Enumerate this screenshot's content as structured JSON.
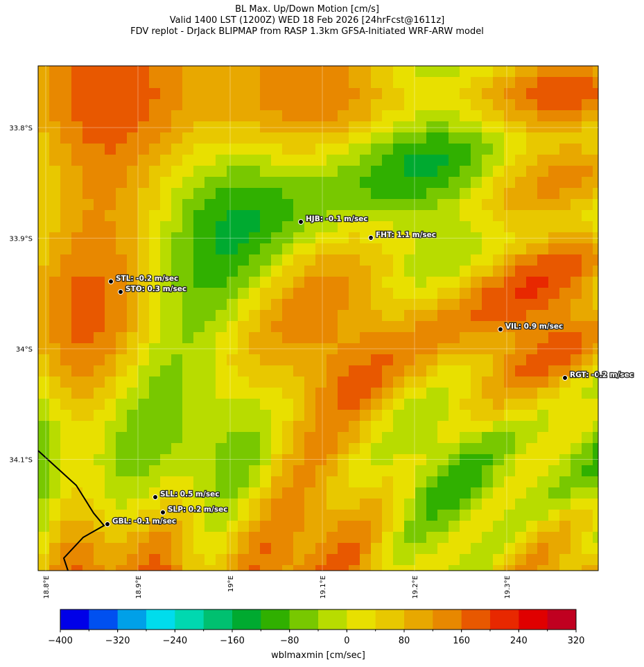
{
  "title": [
    "BL Max. Up/Down Motion [cm/s]",
    "Valid 1400 LST (1200Z) WED 18 Feb 2026 [24hrFcst@1611z]",
    "FDV replot - DrJack BLIPMAP from RASP 1.3km GFSA-Initiated WRF-ARW model"
  ],
  "map": {
    "lat_ticks": [
      {
        "value": -33.8,
        "label": "33.8°S"
      },
      {
        "value": -33.9,
        "label": "33.9°S"
      },
      {
        "value": -34,
        "label": "34°S"
      },
      {
        "value": -34.1,
        "label": "34.1°S"
      }
    ],
    "lon_ticks": [
      {
        "value": 18.8,
        "label": "18.8°E"
      },
      {
        "value": 18.9,
        "label": "18.9°E"
      },
      {
        "value": 19,
        "label": "19°E"
      },
      {
        "value": 19.1,
        "label": "19.1°E"
      },
      {
        "value": 19.2,
        "label": "19.2°E"
      },
      {
        "value": 19.3,
        "label": "19.3°E"
      }
    ],
    "stations": [
      "HJB: -0.1 m/sec",
      "FHT: 1.1 m/sec",
      "STL: -0.2 m/sec",
      "STO: 0.3 m/sec",
      "VIL: 0.9 m/sec",
      "RGT: -0.2 m/sec",
      "SLL: 0.5 m/sec",
      "SLP: 0.2 m/sec",
      "GBL: -0.1 m/sec"
    ]
  },
  "colorbar": {
    "label": "wblmaxmin [cm/sec]",
    "range": [
      -400,
      320
    ],
    "colors": [
      "#0000e8",
      "#0050f0",
      "#00a0e8",
      "#00dcec",
      "#00d8b0",
      "#00c070",
      "#00aa30",
      "#30b000",
      "#78c800",
      "#b8dc00",
      "#e8e000",
      "#e8c800",
      "#e8a800",
      "#e88800",
      "#e85800",
      "#e82800",
      "#e00000",
      "#c00020"
    ],
    "ticks": [
      {
        "value": -400,
        "label": "−400"
      },
      {
        "value": -320,
        "label": "−320"
      },
      {
        "value": -240,
        "label": "−240"
      },
      {
        "value": -160,
        "label": "−160"
      },
      {
        "value": -80,
        "label": "−80"
      },
      0,
      80,
      160,
      240,
      320
    ]
  }
}
